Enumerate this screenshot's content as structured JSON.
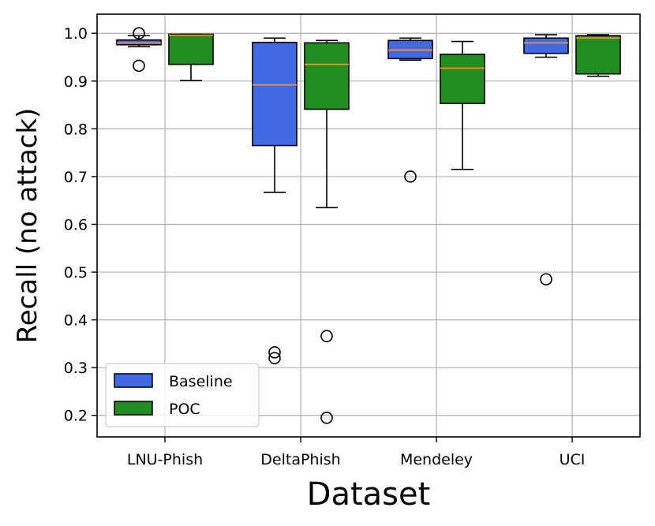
{
  "chart_data": {
    "type": "box",
    "xlabel": "Dataset",
    "ylabel": "Recall (no attack)",
    "ylim": [
      0.155,
      1.04
    ],
    "yticks": [
      "0.2",
      "0.3",
      "0.4",
      "0.5",
      "0.6",
      "0.7",
      "0.8",
      "0.9",
      "1.0"
    ],
    "grid": true,
    "legend_position": "lower-left",
    "categories": [
      "LNU-Phish",
      "DeltaPhish",
      "Mendeley",
      "UCI"
    ],
    "series": [
      {
        "name": "Baseline",
        "color": "#4169e1",
        "boxes": [
          {
            "whisker_low": 0.972,
            "q1": 0.976,
            "median": 0.98,
            "q3": 0.986,
            "whisker_high": 0.995,
            "outliers": [
              0.932,
              1.0
            ]
          },
          {
            "whisker_low": 0.667,
            "q1": 0.765,
            "median": 0.892,
            "q3": 0.981,
            "whisker_high": 0.99,
            "outliers": [
              0.332,
              0.32
            ]
          },
          {
            "whisker_low": 0.944,
            "q1": 0.947,
            "median": 0.965,
            "q3": 0.985,
            "whisker_high": 0.99,
            "outliers": [
              0.7
            ]
          },
          {
            "whisker_low": 0.95,
            "q1": 0.958,
            "median": 0.98,
            "q3": 0.99,
            "whisker_high": 0.997,
            "outliers": [
              0.485
            ]
          }
        ]
      },
      {
        "name": "POC",
        "color": "#228b22",
        "boxes": [
          {
            "whisker_low": 0.901,
            "q1": 0.935,
            "median": 0.996,
            "q3": 0.998,
            "whisker_high": 0.998,
            "outliers": []
          },
          {
            "whisker_low": 0.635,
            "q1": 0.841,
            "median": 0.935,
            "q3": 0.98,
            "whisker_high": 0.985,
            "outliers": [
              0.366,
              0.195
            ]
          },
          {
            "whisker_low": 0.715,
            "q1": 0.853,
            "median": 0.927,
            "q3": 0.956,
            "whisker_high": 0.983,
            "outliers": []
          },
          {
            "whisker_low": 0.91,
            "q1": 0.915,
            "median": 0.99,
            "q3": 0.995,
            "whisker_high": 0.997,
            "outliers": []
          }
        ]
      }
    ],
    "median_color": "#ff8c1a"
  }
}
